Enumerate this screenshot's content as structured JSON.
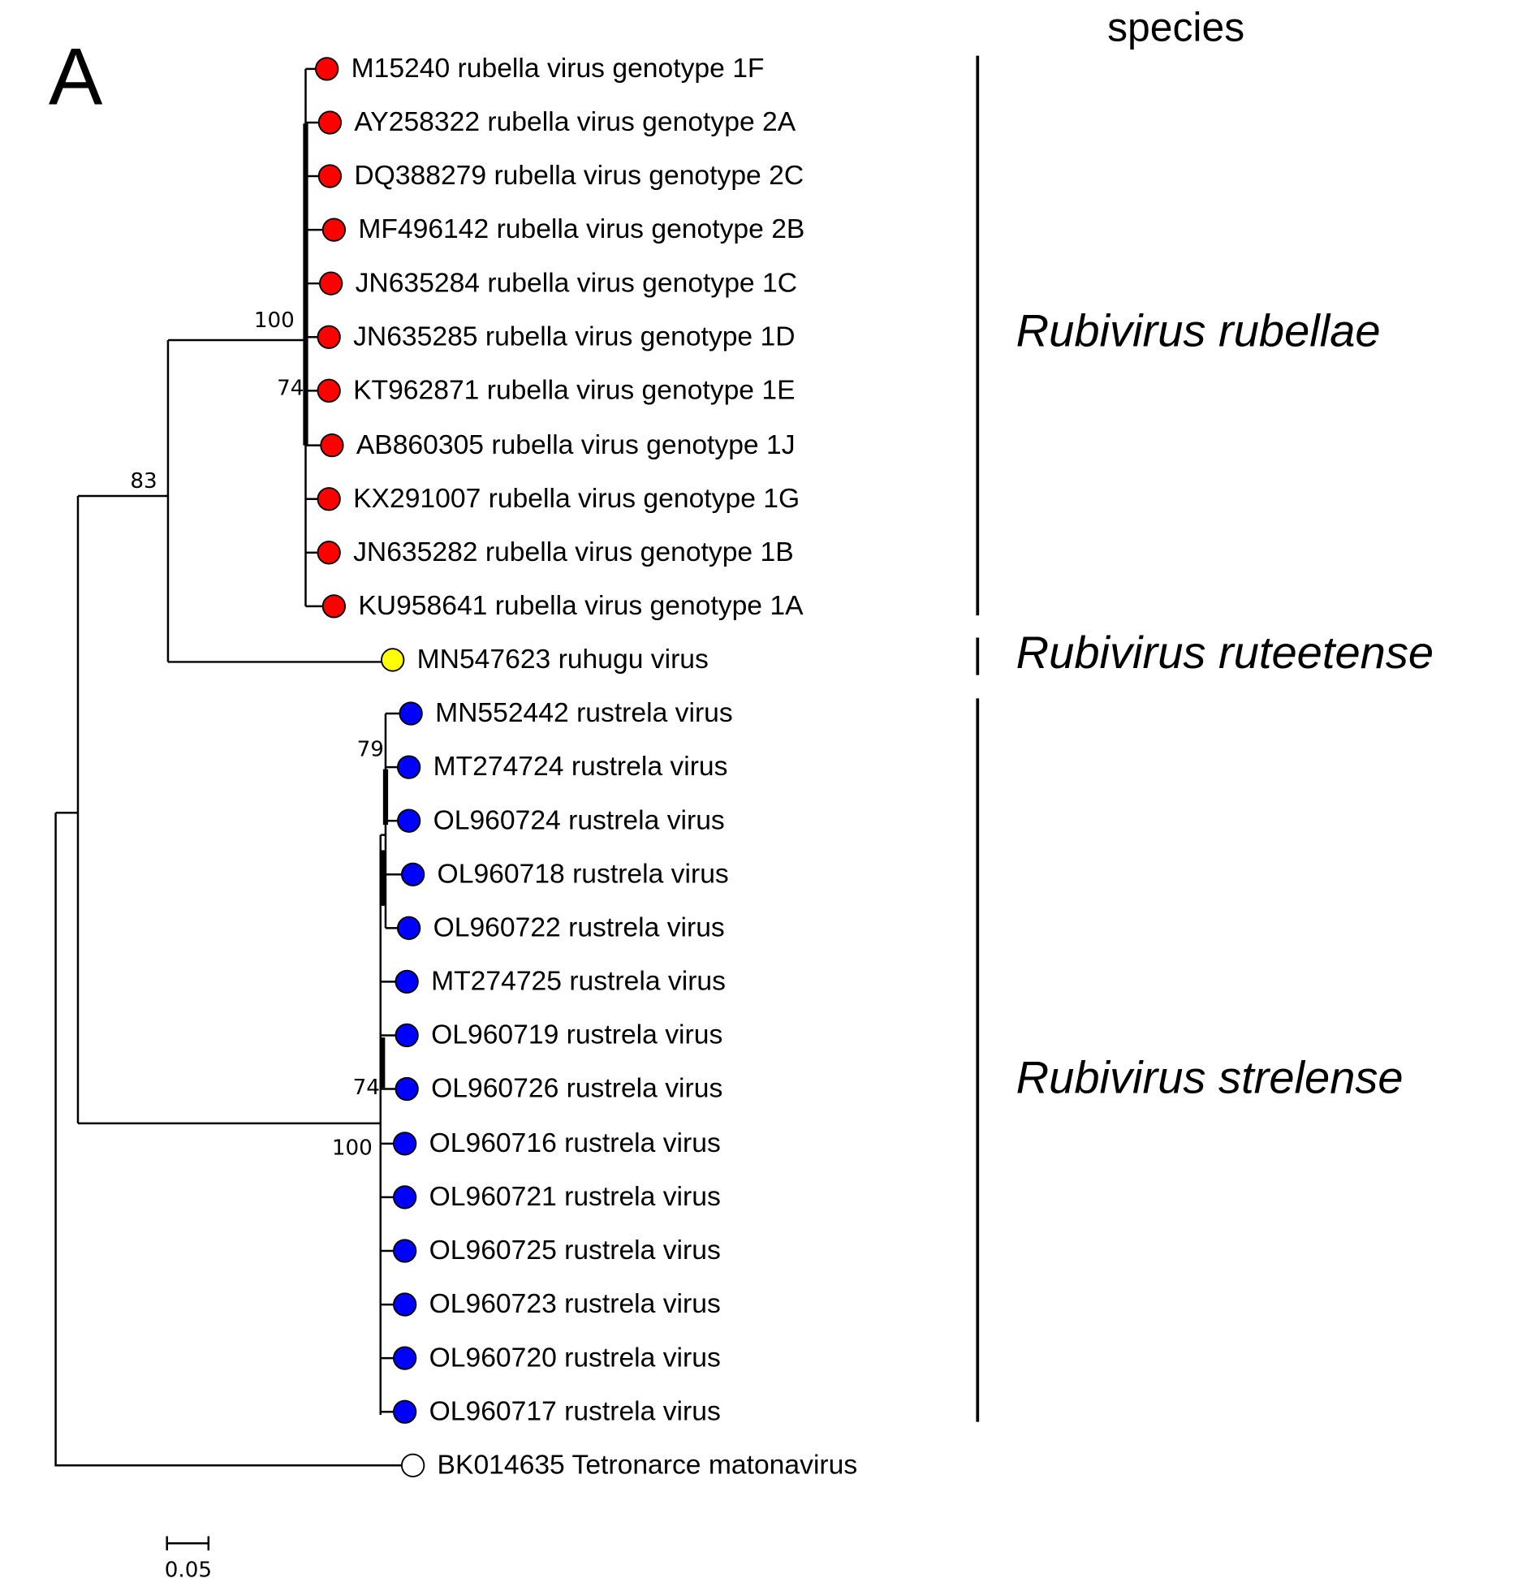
{
  "panel_label": "A",
  "column_header": "species",
  "leaves": [
    {
      "label": "M15240 rubella virus genotype 1F",
      "color": "#ff0000"
    },
    {
      "label": "AY258322 rubella virus genotype 2A",
      "color": "#ff0000"
    },
    {
      "label": "DQ388279 rubella virus genotype 2C",
      "color": "#ff0000"
    },
    {
      "label": "MF496142 rubella virus genotype 2B",
      "color": "#ff0000"
    },
    {
      "label": "JN635284 rubella virus genotype 1C",
      "color": "#ff0000"
    },
    {
      "label": "JN635285 rubella virus genotype 1D",
      "color": "#ff0000"
    },
    {
      "label": "KT962871 rubella virus genotype 1E",
      "color": "#ff0000"
    },
    {
      "label": "AB860305 rubella virus genotype 1J",
      "color": "#ff0000"
    },
    {
      "label": "KX291007 rubella virus genotype 1G",
      "color": "#ff0000"
    },
    {
      "label": "JN635282 rubella virus genotype 1B",
      "color": "#ff0000"
    },
    {
      "label": "KU958641 rubella virus genotype 1A",
      "color": "#ff0000"
    },
    {
      "label": "MN547623 ruhugu virus",
      "color": "#ffff00"
    },
    {
      "label": "MN552442 rustrela virus",
      "color": "#0000ff"
    },
    {
      "label": "MT274724 rustrela virus",
      "color": "#0000ff"
    },
    {
      "label": "OL960724 rustrela virus",
      "color": "#0000ff"
    },
    {
      "label": "OL960718 rustrela virus",
      "color": "#0000ff"
    },
    {
      "label": "OL960722 rustrela virus",
      "color": "#0000ff"
    },
    {
      "label": "MT274725 rustrela virus",
      "color": "#0000ff"
    },
    {
      "label": "OL960719 rustrela virus",
      "color": "#0000ff"
    },
    {
      "label": "OL960726 rustrela virus",
      "color": "#0000ff"
    },
    {
      "label": "OL960716 rustrela virus",
      "color": "#0000ff"
    },
    {
      "label": "OL960721 rustrela virus",
      "color": "#0000ff"
    },
    {
      "label": "OL960725 rustrela virus",
      "color": "#0000ff"
    },
    {
      "label": "OL960723 rustrela virus",
      "color": "#0000ff"
    },
    {
      "label": "OL960720 rustrela virus",
      "color": "#0000ff"
    },
    {
      "label": "OL960717 rustrela virus",
      "color": "#0000ff"
    },
    {
      "label": "BK014635 Tetronarce matonavirus",
      "color": "#ffffff"
    }
  ],
  "bootstrap": [
    100,
    74,
    83,
    79,
    74,
    100
  ],
  "species": [
    "Rubivirus rubellae",
    "Rubivirus ruteetense",
    "Rubivirus strelense"
  ],
  "scale_bar": "0.05"
}
